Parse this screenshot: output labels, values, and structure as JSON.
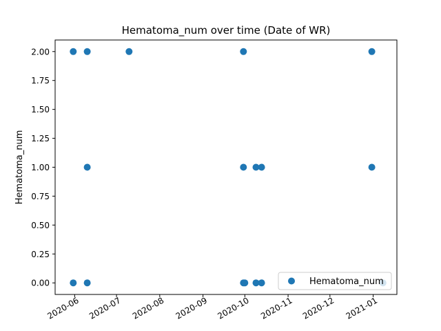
{
  "chart_data": {
    "type": "scatter",
    "title": "Hematoma_num over time (Date of WR)",
    "xlabel": "",
    "ylabel": "Hematoma_num",
    "x_type": "date",
    "xlim": [
      "2020-05-18",
      "2021-01-18"
    ],
    "ylim": [
      -0.1,
      2.1
    ],
    "x_ticks": [
      "2020-06-01",
      "2020-07-01",
      "2020-08-01",
      "2020-09-01",
      "2020-10-01",
      "2020-11-01",
      "2020-12-01",
      "2021-01-01"
    ],
    "x_tick_labels": [
      "2020-06",
      "2020-07",
      "2020-08",
      "2020-09",
      "2020-10",
      "2020-11",
      "2020-12",
      "2021-01"
    ],
    "y_ticks": [
      0,
      0.25,
      0.5,
      0.75,
      1,
      1.25,
      1.5,
      1.75,
      2
    ],
    "y_tick_labels": [
      "0.00",
      "0.25",
      "0.50",
      "0.75",
      "1.00",
      "1.25",
      "1.50",
      "1.75",
      "2.00"
    ],
    "grid": false,
    "legend_position": "lower right",
    "series": [
      {
        "name": "Hematoma_num",
        "color": "#1f77b4",
        "marker": "circle",
        "points": [
          {
            "x": "2020-05-31",
            "y": 2
          },
          {
            "x": "2020-05-31",
            "y": 0
          },
          {
            "x": "2020-06-10",
            "y": 2
          },
          {
            "x": "2020-06-10",
            "y": 1
          },
          {
            "x": "2020-06-10",
            "y": 0
          },
          {
            "x": "2020-07-10",
            "y": 2
          },
          {
            "x": "2020-09-30",
            "y": 2
          },
          {
            "x": "2020-09-30",
            "y": 1
          },
          {
            "x": "2020-09-30",
            "y": 0
          },
          {
            "x": "2020-10-01",
            "y": 0
          },
          {
            "x": "2020-10-09",
            "y": 1
          },
          {
            "x": "2020-10-09",
            "y": 0
          },
          {
            "x": "2020-10-13",
            "y": 1
          },
          {
            "x": "2020-10-13",
            "y": 0
          },
          {
            "x": "2020-12-31",
            "y": 2
          },
          {
            "x": "2020-12-31",
            "y": 1
          },
          {
            "x": "2021-01-08",
            "y": 0
          }
        ]
      }
    ]
  }
}
